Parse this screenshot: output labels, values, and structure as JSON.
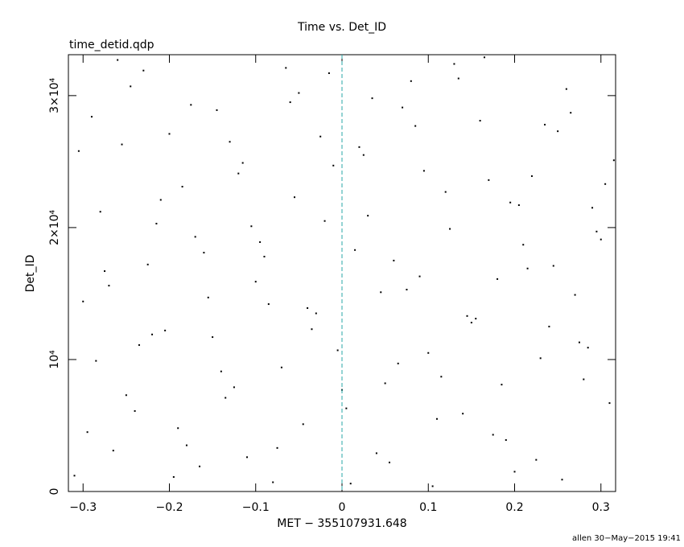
{
  "chart_data": {
    "type": "scatter",
    "title": "Time vs. Det_ID",
    "subtitle": "time_detid.qdp",
    "xlabel": "MET − 355107931.648",
    "ylabel": "Det_ID",
    "footer": "allen 30−May−2015 19:41",
    "color": "#000000",
    "reference_line": {
      "x": 0,
      "color": "#2aa7a7",
      "dashed": true
    },
    "xlim": [
      -0.317,
      0.317
    ],
    "ylim": [
      0,
      33100
    ],
    "xticks": [
      {
        "value": -0.3,
        "label": "−0.3"
      },
      {
        "value": -0.2,
        "label": "−0.2"
      },
      {
        "value": -0.1,
        "label": "−0.1"
      },
      0,
      0.1,
      0.2,
      0.3
    ],
    "yticks": [
      0,
      {
        "value": 10000,
        "label": "10⁴"
      },
      {
        "value": 20000,
        "label": "2×10⁴"
      },
      {
        "value": 30000,
        "label": "3×10⁴"
      }
    ],
    "x": [
      -0.31,
      -0.29,
      -0.27,
      -0.25,
      -0.23,
      -0.21,
      -0.19,
      -0.17,
      -0.15,
      -0.13,
      -0.11,
      -0.09,
      -0.07,
      -0.05,
      -0.03,
      -0.01,
      0.01,
      0.03,
      0.05,
      0.07,
      0.09,
      0.11,
      0.13,
      0.15,
      0.17,
      0.19,
      0.21,
      0.23,
      0.25,
      0.27,
      0.29,
      0.31,
      -0.305,
      -0.285,
      -0.265,
      -0.245,
      -0.225,
      -0.205,
      -0.185,
      -0.165,
      -0.145,
      -0.125,
      -0.105,
      -0.085,
      -0.065,
      -0.045,
      -0.025,
      -0.005,
      0.015,
      0.035,
      0.055,
      0.075,
      0.095,
      0.115,
      0.135,
      0.155,
      0.175,
      0.195,
      0.215,
      0.235,
      0.255,
      0.275,
      0.295,
      0.315,
      -0.3,
      -0.28,
      -0.26,
      -0.24,
      -0.22,
      -0.2,
      -0.18,
      -0.16,
      -0.14,
      -0.12,
      -0.1,
      -0.08,
      -0.06,
      -0.04,
      -0.02,
      0.0,
      0.02,
      0.04,
      0.06,
      0.08,
      0.1,
      0.12,
      0.14,
      0.16,
      0.18,
      0.2,
      0.22,
      0.24,
      0.26,
      0.28,
      0.3,
      -0.295,
      -0.275,
      -0.255,
      -0.235,
      -0.215,
      -0.195,
      -0.175,
      -0.155,
      -0.135,
      -0.115,
      -0.095,
      -0.075,
      -0.055,
      -0.035,
      -0.015,
      0.005,
      0.025,
      0.045,
      0.065,
      0.085,
      0.105,
      0.125,
      0.145,
      0.165,
      0.185,
      0.205,
      0.225,
      0.245,
      0.265,
      0.285,
      0.305
    ],
    "values": [
      1200,
      28400,
      15600,
      7300,
      31900,
      22100,
      4800,
      19300,
      11700,
      26500,
      2600,
      17800,
      9400,
      30200,
      13500,
      24700,
      600,
      20900,
      8200,
      29100,
      16300,
      5500,
      32400,
      12800,
      23600,
      3900,
      18700,
      10100,
      27300,
      14900,
      21500,
      6700,
      25800,
      9900,
      3100,
      30700,
      17200,
      12200,
      23100,
      1900,
      28900,
      7900,
      20100,
      14200,
      32100,
      5100,
      26900,
      10700,
      18300,
      29800,
      2200,
      15300,
      24300,
      8700,
      31300,
      13100,
      4300,
      21900,
      16900,
      27800,
      900,
      11300,
      19700,
      25100,
      14400,
      21200,
      32700,
      6100,
      11900,
      27100,
      3500,
      18100,
      9100,
      24100,
      15900,
      700,
      29500,
      13900,
      20500,
      7700,
      26100,
      2900,
      17500,
      31100,
      10500,
      22700,
      5900,
      28100,
      16100,
      1500,
      23900,
      12500,
      30500,
      8500,
      19100,
      4500,
      16700,
      26300,
      11100,
      20300,
      1100,
      29300,
      14700,
      7100,
      24900,
      18900,
      3300,
      22300,
      12300,
      31700,
      6300,
      25500,
      15100,
      9700,
      27700,
      400,
      19900,
      13300,
      32900,
      8100,
      21700,
      2400,
      17100,
      28700,
      10900,
      23300
    ]
  }
}
